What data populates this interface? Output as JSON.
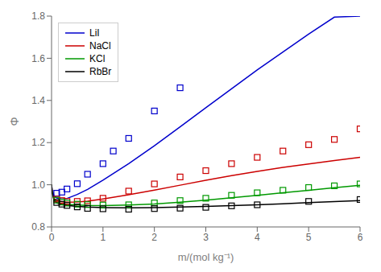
{
  "chart_data": {
    "type": "line",
    "xlabel": "m/(mol kg⁻¹)",
    "ylabel": "Φ",
    "xlim": [
      0,
      6
    ],
    "ylim": [
      0.8,
      1.8
    ],
    "xticks": [
      0,
      1,
      2,
      3,
      4,
      5,
      6
    ],
    "yticks": [
      0.8,
      {
        "value": 1,
        "label": "1.0"
      },
      1.2,
      1.4,
      1.6,
      1.8
    ],
    "legend": "upper left",
    "series": [
      {
        "name": "LiI",
        "type": "line",
        "color": "#0000cc",
        "x": [
          0.001,
          0.01,
          0.05,
          0.1,
          0.2,
          0.3,
          0.5,
          0.7,
          1.0,
          1.5,
          2.0,
          2.5,
          3.0,
          3.5,
          4.0,
          4.5,
          5.0,
          5.5,
          6.0
        ],
        "values": [
          1.0,
          0.978,
          0.946,
          0.937,
          0.932,
          0.935,
          0.954,
          0.978,
          1.022,
          1.1,
          1.185,
          1.275,
          1.365,
          1.455,
          1.545,
          1.63,
          1.715,
          1.795,
          1.8
        ]
      },
      {
        "type": "scatter",
        "marker": "square",
        "color": "#0000cc",
        "x": [
          0.1,
          0.2,
          0.3,
          0.5,
          0.7,
          1.0,
          1.2,
          1.5,
          2.0,
          2.5
        ],
        "values": [
          0.96,
          0.965,
          0.98,
          1.005,
          1.05,
          1.1,
          1.16,
          1.22,
          1.35,
          1.46
        ]
      },
      {
        "name": "NaCl",
        "type": "line",
        "color": "#cc0000",
        "x": [
          0.001,
          0.01,
          0.05,
          0.1,
          0.2,
          0.3,
          0.5,
          0.7,
          1.0,
          1.5,
          2.0,
          2.5,
          3.0,
          3.5,
          4.0,
          4.5,
          5.0,
          5.5,
          6.0
        ],
        "values": [
          1.0,
          0.972,
          0.934,
          0.925,
          0.919,
          0.917,
          0.918,
          0.922,
          0.933,
          0.953,
          0.975,
          0.998,
          1.021,
          1.043,
          1.063,
          1.082,
          1.099,
          1.115,
          1.13
        ]
      },
      {
        "type": "scatter",
        "marker": "square",
        "color": "#cc0000",
        "x": [
          0.1,
          0.2,
          0.3,
          0.5,
          0.7,
          1.0,
          1.5,
          2.0,
          2.5,
          3.0,
          3.5,
          4.0,
          4.5,
          5.0,
          5.5,
          6.0
        ],
        "values": [
          0.932,
          0.925,
          0.921,
          0.921,
          0.924,
          0.936,
          0.97,
          1.004,
          1.037,
          1.067,
          1.1,
          1.13,
          1.16,
          1.19,
          1.215,
          1.265
        ]
      },
      {
        "name": "KCl",
        "type": "line",
        "color": "#009900",
        "x": [
          0.001,
          0.01,
          0.05,
          0.1,
          0.2,
          0.3,
          0.5,
          0.7,
          1.0,
          1.5,
          2.0,
          2.5,
          3.0,
          3.5,
          4.0,
          4.5,
          5.0,
          5.5,
          6.0
        ],
        "values": [
          1.0,
          0.968,
          0.928,
          0.918,
          0.911,
          0.907,
          0.904,
          0.902,
          0.901,
          0.904,
          0.909,
          0.917,
          0.927,
          0.938,
          0.95,
          0.962,
          0.974,
          0.986,
          0.998
        ]
      },
      {
        "type": "scatter",
        "marker": "square",
        "color": "#009900",
        "x": [
          0.1,
          0.2,
          0.3,
          0.5,
          0.7,
          1.0,
          1.5,
          2.0,
          2.5,
          3.0,
          3.5,
          4.0,
          4.5,
          5.0,
          5.5,
          6.0
        ],
        "values": [
          0.927,
          0.918,
          0.913,
          0.908,
          0.906,
          0.904,
          0.905,
          0.914,
          0.925,
          0.936,
          0.95,
          0.962,
          0.974,
          0.987,
          0.995,
          1.004
        ]
      },
      {
        "name": "RbBr",
        "type": "line",
        "color": "#000000",
        "x": [
          0.001,
          0.01,
          0.05,
          0.1,
          0.2,
          0.3,
          0.5,
          0.7,
          1.0,
          1.5,
          2.0,
          2.5,
          3.0,
          3.5,
          4.0,
          4.5,
          5.0,
          5.5,
          6.0
        ],
        "values": [
          1.0,
          0.966,
          0.925,
          0.914,
          0.906,
          0.902,
          0.897,
          0.894,
          0.892,
          0.891,
          0.892,
          0.894,
          0.897,
          0.901,
          0.905,
          0.91,
          0.915,
          0.92,
          0.925
        ]
      },
      {
        "type": "scatter",
        "marker": "square",
        "color": "#000000",
        "x": [
          0.1,
          0.2,
          0.3,
          0.5,
          0.7,
          1.0,
          1.5,
          2.0,
          2.5,
          3.0,
          3.5,
          4.0,
          5.0,
          6.0
        ],
        "values": [
          0.916,
          0.908,
          0.902,
          0.895,
          0.888,
          0.886,
          0.884,
          0.887,
          0.889,
          0.893,
          0.9,
          0.905,
          0.921,
          0.93
        ]
      }
    ]
  }
}
